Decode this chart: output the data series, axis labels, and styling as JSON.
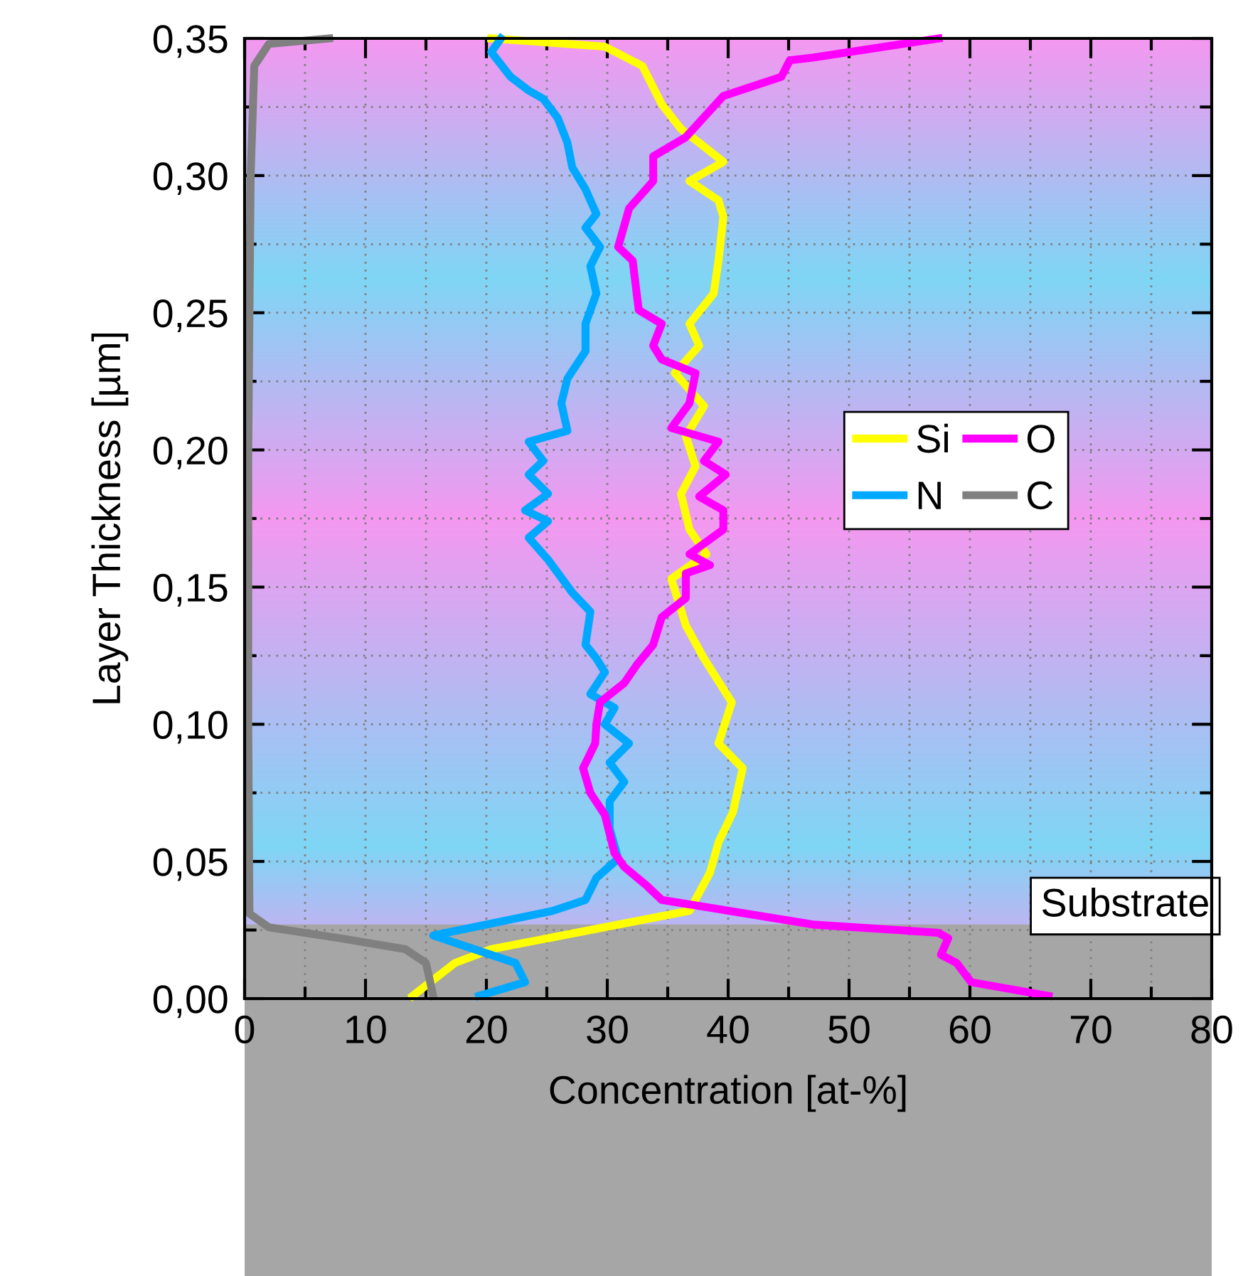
{
  "chart_data": {
    "type": "line",
    "xlabel": "Concentration [at-%]",
    "ylabel": "Layer Thickness [µm]",
    "xlim": [
      0,
      80
    ],
    "xticks": [
      0,
      10,
      20,
      30,
      40,
      50,
      60,
      70,
      80
    ],
    "ylim": [
      0,
      0.35
    ],
    "yticks": [
      {
        "value": 0,
        "label": "0,00"
      },
      {
        "value": 0.05,
        "label": "0,05"
      },
      {
        "value": 0.1,
        "label": "0,10"
      },
      {
        "value": 0.15,
        "label": "0,15"
      },
      {
        "value": 0.2,
        "label": "0,20"
      },
      {
        "value": 0.25,
        "label": "0,25"
      },
      {
        "value": 0.3,
        "label": "0,30"
      },
      {
        "value": 0.35,
        "label": "0,35"
      }
    ],
    "grid": true,
    "legend": "right",
    "marker": "none",
    "line_style": "solid",
    "bands": [
      {
        "axis": "y",
        "from": 0,
        "to": 0.027,
        "label": "Substrate",
        "color": "#a6a6a6"
      }
    ],
    "series": [
      {
        "name": "Si",
        "color": "#ffff00",
        "x": [
          13.9,
          17.4,
          20.4,
          36.8,
          38.5,
          39.2,
          40.4,
          41.2,
          39.2,
          40.3,
          38.0,
          36.5,
          35.3,
          38.2,
          36.8,
          36.1,
          37.3,
          36.5,
          38.0,
          35.6,
          37.6,
          36.8,
          38.8,
          39.2,
          39.6,
          39.2,
          36.8,
          39.6,
          37.6,
          36.1,
          34.5,
          32.9,
          29.8,
          20.4
        ],
        "values": [
          0.001,
          0.013,
          0.018,
          0.032,
          0.046,
          0.057,
          0.068,
          0.084,
          0.093,
          0.108,
          0.124,
          0.136,
          0.153,
          0.162,
          0.171,
          0.184,
          0.194,
          0.205,
          0.216,
          0.228,
          0.238,
          0.246,
          0.257,
          0.269,
          0.285,
          0.291,
          0.298,
          0.305,
          0.312,
          0.317,
          0.326,
          0.34,
          0.347,
          0.35
        ]
      },
      {
        "name": "N",
        "color": "#00a8ff",
        "x": [
          19.4,
          23.2,
          22.4,
          15.6,
          25.5,
          28.2,
          29.1,
          30.9,
          30.2,
          30.2,
          31.4,
          30.2,
          31.8,
          29.8,
          30.6,
          28.6,
          29.8,
          29.1,
          28.2,
          28.6,
          27.1,
          25.1,
          23.5,
          25.1,
          23.2,
          25.1,
          23.5,
          24.7,
          23.5,
          26.7,
          26.2,
          26.7,
          28.2,
          28.2,
          29.1,
          28.6,
          29.4,
          28.2,
          29.1,
          28.2,
          27.1,
          26.7,
          25.9,
          24.7,
          23.5,
          22.0,
          20.4,
          21.2
        ],
        "values": [
          0.001,
          0.006,
          0.013,
          0.023,
          0.032,
          0.036,
          0.044,
          0.051,
          0.062,
          0.072,
          0.079,
          0.086,
          0.093,
          0.1,
          0.106,
          0.111,
          0.119,
          0.124,
          0.129,
          0.141,
          0.148,
          0.16,
          0.168,
          0.174,
          0.178,
          0.184,
          0.191,
          0.196,
          0.203,
          0.207,
          0.217,
          0.226,
          0.236,
          0.246,
          0.257,
          0.267,
          0.274,
          0.281,
          0.286,
          0.295,
          0.303,
          0.312,
          0.321,
          0.328,
          0.331,
          0.336,
          0.345,
          0.35
        ]
      },
      {
        "name": "O",
        "color": "#ff00ff",
        "x": [
          66.5,
          60.1,
          58.9,
          57.6,
          58.2,
          57.4,
          47.0,
          34.5,
          33.3,
          31.4,
          30.6,
          29.8,
          28.6,
          28.0,
          29.0,
          29.1,
          29.4,
          31.4,
          32.5,
          33.8,
          34.5,
          36.5,
          36.5,
          38.5,
          36.8,
          39.6,
          39.6,
          37.6,
          39.8,
          38.0,
          39.2,
          35.3,
          36.8,
          37.3,
          34.5,
          33.8,
          34.5,
          32.6,
          32.1,
          30.9,
          31.8,
          33.8,
          33.8,
          36.5,
          39.6,
          44.4,
          45.1,
          47.0,
          57.4
        ],
        "values": [
          0.001,
          0.006,
          0.013,
          0.016,
          0.022,
          0.024,
          0.027,
          0.036,
          0.041,
          0.048,
          0.053,
          0.067,
          0.075,
          0.084,
          0.093,
          0.1,
          0.108,
          0.115,
          0.122,
          0.129,
          0.139,
          0.146,
          0.155,
          0.158,
          0.162,
          0.171,
          0.178,
          0.183,
          0.191,
          0.196,
          0.203,
          0.208,
          0.217,
          0.228,
          0.233,
          0.238,
          0.246,
          0.251,
          0.269,
          0.274,
          0.288,
          0.298,
          0.307,
          0.314,
          0.329,
          0.336,
          0.342,
          0.343,
          0.35
        ]
      },
      {
        "name": "C",
        "color": "#808080",
        "x": [
          15.6,
          15.0,
          13.3,
          7.9,
          2.0,
          0.4,
          0.3,
          0.3,
          0.5,
          0.8,
          2.0,
          7.0
        ],
        "values": [
          0.001,
          0.013,
          0.018,
          0.022,
          0.026,
          0.031,
          0.1,
          0.2,
          0.3,
          0.34,
          0.348,
          0.35
        ]
      }
    ]
  }
}
